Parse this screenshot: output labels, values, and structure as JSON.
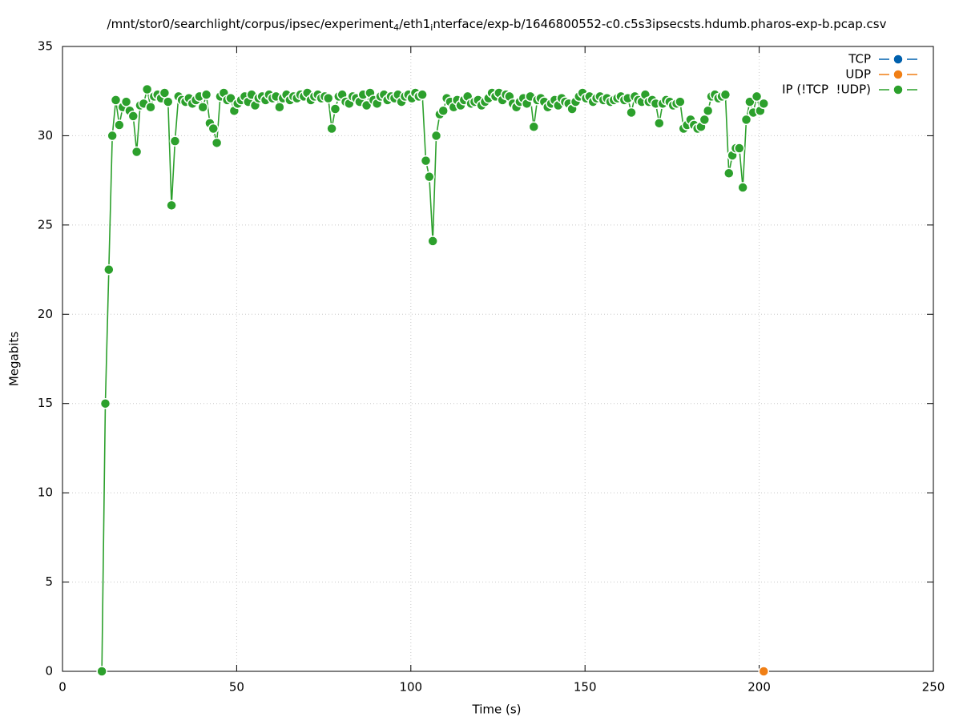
{
  "chart_data": {
    "type": "line",
    "title_parts": [
      "/mnt/stor0/searchlight/corpus/ipsec/experiment",
      "4",
      "/eth1",
      "i",
      "nterface/exp-b/1646800552-c0.c5s3ipsecsts.hdumb.pharos-exp-b.pcap.csv"
    ],
    "x_label": "Time (s)",
    "y_label": "Megabits",
    "xlim": [
      0,
      250
    ],
    "xticks": [
      0,
      50,
      100,
      150,
      200,
      250
    ],
    "ylim": [
      0,
      35
    ],
    "yticks": [
      0,
      5,
      10,
      15,
      20,
      25,
      30,
      35
    ],
    "grid": true,
    "legend": "top right",
    "series": [
      {
        "name": "TCP",
        "color": "#0060ad",
        "x": [],
        "values": []
      },
      {
        "name": "UDP",
        "color": "#f07f15",
        "x": [
          201.3
        ],
        "values": [
          0
        ]
      },
      {
        "name": "IP (!TCP  !UDP)",
        "color": "#2ca02c",
        "x": [
          11.3,
          12.3,
          13.3,
          14.3,
          15.3,
          16.3,
          17.3,
          18.3,
          19.3,
          20.3,
          21.3,
          22.3,
          23.3,
          24.3,
          25.3,
          26.3,
          27.3,
          28.3,
          29.3,
          30.3,
          31.3,
          32.3,
          33.3,
          34.3,
          35.3,
          36.3,
          37.3,
          38.3,
          39.3,
          40.3,
          41.3,
          42.3,
          43.3,
          44.3,
          45.3,
          46.3,
          47.3,
          48.3,
          49.3,
          50.3,
          51.3,
          52.3,
          53.3,
          54.3,
          55.3,
          56.3,
          57.3,
          58.3,
          59.3,
          60.3,
          61.3,
          62.3,
          63.3,
          64.3,
          65.3,
          66.3,
          67.3,
          68.3,
          69.3,
          70.3,
          71.3,
          72.3,
          73.3,
          74.3,
          75.3,
          76.3,
          77.3,
          78.3,
          79.3,
          80.3,
          81.3,
          82.3,
          83.3,
          84.3,
          85.3,
          86.3,
          87.3,
          88.3,
          89.3,
          90.3,
          91.3,
          92.3,
          93.3,
          94.3,
          95.3,
          96.3,
          97.3,
          98.3,
          99.3,
          100.3,
          101.3,
          102.3,
          103.3,
          104.3,
          105.3,
          106.3,
          107.3,
          108.3,
          109.3,
          110.3,
          111.3,
          112.3,
          113.3,
          114.3,
          115.3,
          116.3,
          117.3,
          118.3,
          119.3,
          120.3,
          121.3,
          122.3,
          123.3,
          124.3,
          125.3,
          126.3,
          127.3,
          128.3,
          129.3,
          130.3,
          131.3,
          132.3,
          133.3,
          134.3,
          135.3,
          136.3,
          137.3,
          138.3,
          139.3,
          140.3,
          141.3,
          142.3,
          143.3,
          144.3,
          145.3,
          146.3,
          147.3,
          148.3,
          149.3,
          150.3,
          151.3,
          152.3,
          153.3,
          154.3,
          155.3,
          156.3,
          157.3,
          158.3,
          159.3,
          160.3,
          161.3,
          162.3,
          163.3,
          164.3,
          165.3,
          166.3,
          167.3,
          168.3,
          169.3,
          170.3,
          171.3,
          172.3,
          173.3,
          174.3,
          175.3,
          176.3,
          177.3,
          178.3,
          179.3,
          180.3,
          181.3,
          182.3,
          183.3,
          184.3,
          185.3,
          186.3,
          187.3,
          188.3,
          189.3,
          190.3,
          191.3,
          192.3,
          193.3,
          194.3,
          195.3,
          196.3,
          197.3,
          198.3,
          199.3,
          200.3,
          201.3
        ],
        "values": [
          0,
          15,
          22.5,
          30.0,
          32.0,
          30.6,
          31.6,
          31.9,
          31.4,
          31.1,
          29.1,
          31.7,
          31.8,
          32.6,
          31.6,
          32.2,
          32.3,
          32.1,
          32.4,
          31.9,
          26.1,
          29.7,
          32.2,
          32.0,
          31.9,
          32.1,
          31.8,
          32.0,
          32.2,
          31.6,
          32.3,
          30.7,
          30.4,
          29.6,
          32.2,
          32.4,
          32.0,
          32.1,
          31.4,
          31.8,
          32.0,
          32.2,
          31.9,
          32.3,
          31.7,
          32.1,
          32.2,
          32.0,
          32.3,
          32.1,
          32.2,
          31.6,
          32.1,
          32.3,
          32.0,
          32.2,
          32.1,
          32.3,
          32.2,
          32.4,
          32.0,
          32.2,
          32.3,
          32.1,
          32.2,
          32.1,
          30.4,
          31.5,
          32.2,
          32.3,
          31.9,
          31.8,
          32.2,
          32.1,
          31.9,
          32.3,
          31.7,
          32.4,
          32.0,
          31.8,
          32.2,
          32.3,
          32.0,
          32.2,
          32.1,
          32.3,
          31.9,
          32.2,
          32.3,
          32.1,
          32.4,
          32.2,
          32.3,
          28.6,
          27.7,
          24.1,
          30.0,
          31.2,
          31.4,
          32.1,
          31.9,
          31.6,
          32.0,
          31.7,
          32.0,
          32.2,
          31.8,
          31.9,
          32.0,
          31.7,
          31.9,
          32.1,
          32.4,
          32.2,
          32.4,
          32.0,
          32.3,
          32.2,
          31.8,
          31.6,
          31.9,
          32.1,
          31.8,
          32.2,
          30.5,
          32.0,
          32.1,
          31.9,
          31.6,
          31.8,
          32.0,
          31.7,
          32.1,
          31.9,
          31.8,
          31.5,
          31.9,
          32.2,
          32.4,
          32.1,
          32.2,
          31.9,
          32.1,
          32.2,
          32.0,
          32.1,
          31.9,
          32.0,
          32.1,
          32.2,
          32.0,
          32.1,
          31.3,
          32.2,
          32.0,
          31.9,
          32.3,
          31.9,
          32.0,
          31.8,
          30.7,
          31.8,
          32.0,
          31.9,
          31.7,
          31.8,
          31.9,
          30.4,
          30.6,
          30.9,
          30.6,
          30.4,
          30.5,
          30.9,
          31.4,
          32.2,
          32.3,
          32.1,
          32.2,
          32.3,
          27.9,
          28.9,
          29.3,
          29.3,
          27.1,
          30.9,
          31.9,
          31.3,
          32.2,
          31.4,
          31.8
        ]
      }
    ]
  }
}
